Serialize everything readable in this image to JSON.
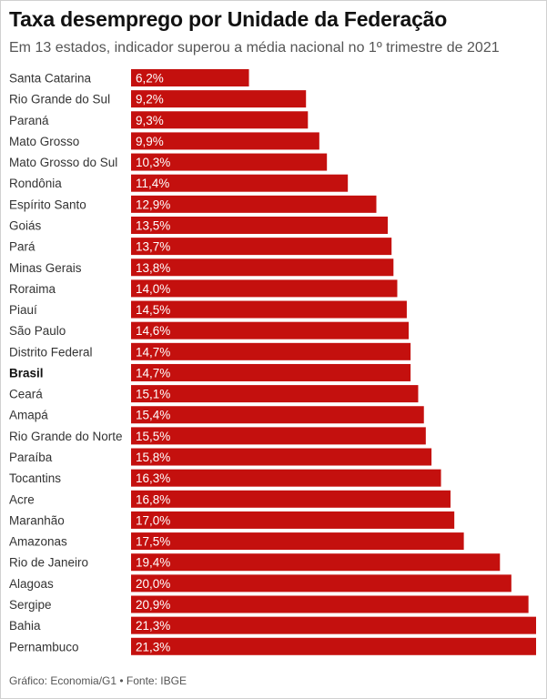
{
  "title": "Taxa desemprego por Unidade da Federação",
  "subtitle": "Em 13 estados, indicador superou a média nacional no 1º trimestre de 2021",
  "source": "Gráfico: Economia/G1 • Fonte: IBGE",
  "colors": {
    "bar": "#c4100e",
    "label_text": "#ffffff",
    "category_text": "#333333"
  },
  "chart_data": {
    "type": "bar",
    "orientation": "horizontal",
    "title": "Taxa desemprego por Unidade da Federação",
    "subtitle": "Em 13 estados, indicador superou a média nacional no 1º trimestre de 2021",
    "xlabel": "",
    "ylabel": "",
    "xlim": [
      0,
      21.3
    ],
    "grid": false,
    "legend": "none",
    "highlight": [
      "Brasil"
    ],
    "categories": [
      "Santa Catarina",
      "Rio Grande do Sul",
      "Paraná",
      "Mato Grosso",
      "Mato Grosso do Sul",
      "Rondônia",
      "Espírito Santo",
      "Goiás",
      "Pará",
      "Minas Gerais",
      "Roraima",
      "Piauí",
      "São Paulo",
      "Distrito Federal",
      "Brasil",
      "Ceará",
      "Amapá",
      "Rio Grande do Norte",
      "Paraíba",
      "Tocantins",
      "Acre",
      "Maranhão",
      "Amazonas",
      "Rio de Janeiro",
      "Alagoas",
      "Sergipe",
      "Bahia",
      "Pernambuco"
    ],
    "values": [
      6.2,
      9.2,
      9.3,
      9.9,
      10.3,
      11.4,
      12.9,
      13.5,
      13.7,
      13.8,
      14.0,
      14.5,
      14.6,
      14.7,
      14.7,
      15.1,
      15.4,
      15.5,
      15.8,
      16.3,
      16.8,
      17.0,
      17.5,
      19.4,
      20.0,
      20.9,
      21.3,
      21.3
    ],
    "labels": [
      "6,2%",
      "9,2%",
      "9,3%",
      "9,9%",
      "10,3%",
      "11,4%",
      "12,9%",
      "13,5%",
      "13,7%",
      "13,8%",
      "14,0%",
      "14,5%",
      "14,6%",
      "14,7%",
      "14,7%",
      "15,1%",
      "15,4%",
      "15,5%",
      "15,8%",
      "16,3%",
      "16,8%",
      "17,0%",
      "17,5%",
      "19,4%",
      "20,0%",
      "20,9%",
      "21,3%",
      "21,3%"
    ]
  }
}
